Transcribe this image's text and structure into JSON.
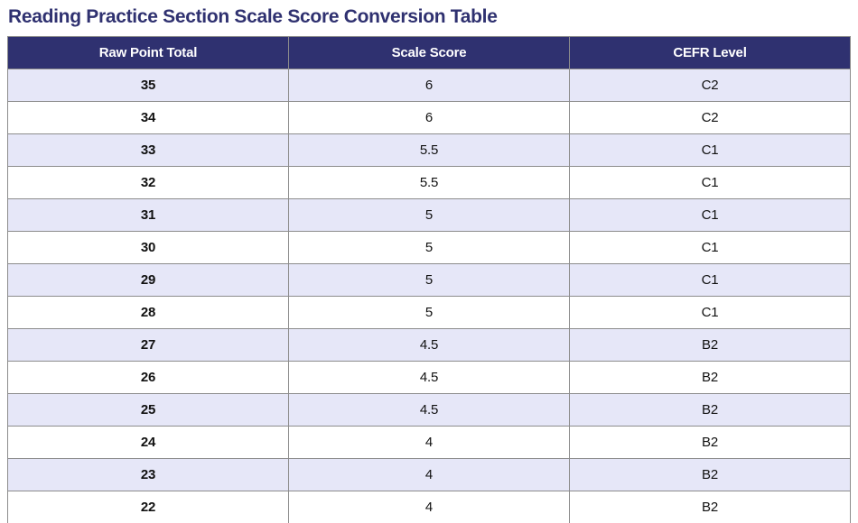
{
  "title": "Reading Practice Section Scale Score Conversion Table",
  "colors": {
    "accent": "#2f3170",
    "header_bg": "#2f3170",
    "header_text": "#ffffff",
    "row_bg": "#ffffff",
    "row_alt_bg": "#e6e7f8",
    "border": "#8c8c8c",
    "text": "#111111"
  },
  "table": {
    "columns": [
      "Raw Point Total",
      "Scale Score",
      "CEFR Level"
    ],
    "rows": [
      {
        "raw": "35",
        "scale": "6",
        "cefr": "C2"
      },
      {
        "raw": "34",
        "scale": "6",
        "cefr": "C2"
      },
      {
        "raw": "33",
        "scale": "5.5",
        "cefr": "C1"
      },
      {
        "raw": "32",
        "scale": "5.5",
        "cefr": "C1"
      },
      {
        "raw": "31",
        "scale": "5",
        "cefr": "C1"
      },
      {
        "raw": "30",
        "scale": "5",
        "cefr": "C1"
      },
      {
        "raw": "29",
        "scale": "5",
        "cefr": "C1"
      },
      {
        "raw": "28",
        "scale": "5",
        "cefr": "C1"
      },
      {
        "raw": "27",
        "scale": "4.5",
        "cefr": "B2"
      },
      {
        "raw": "26",
        "scale": "4.5",
        "cefr": "B2"
      },
      {
        "raw": "25",
        "scale": "4.5",
        "cefr": "B2"
      },
      {
        "raw": "24",
        "scale": "4",
        "cefr": "B2"
      },
      {
        "raw": "23",
        "scale": "4",
        "cefr": "B2"
      },
      {
        "raw": "22",
        "scale": "4",
        "cefr": "B2"
      }
    ]
  }
}
